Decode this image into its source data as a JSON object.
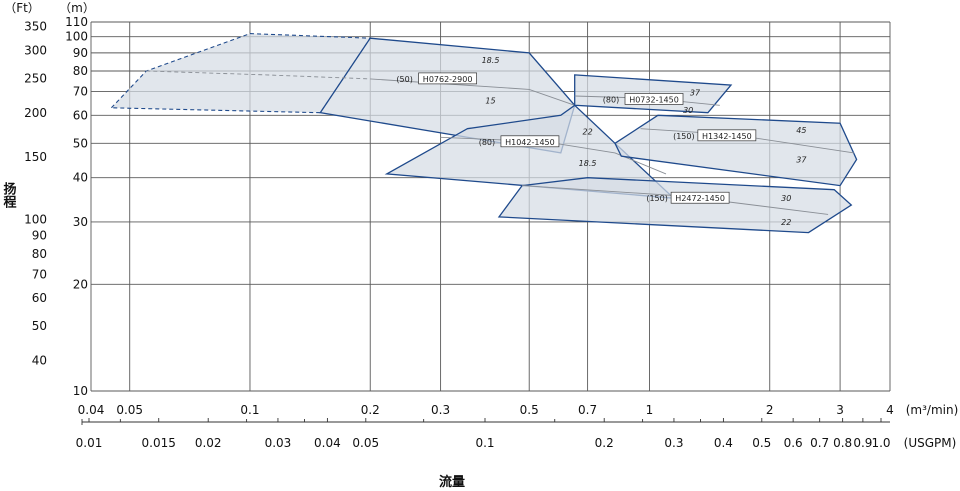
{
  "chart_data": {
    "type": "area",
    "x_axis_primary": {
      "unit_label": "(m³/min)",
      "scale": "log",
      "range": [
        0.04,
        4
      ],
      "ticks": [
        {
          "v": 0.04,
          "label": "0.04"
        },
        {
          "v": 0.05,
          "label": "0.05"
        },
        {
          "v": 0.1,
          "label": "0.1"
        },
        {
          "v": 0.2,
          "label": "0.2"
        },
        {
          "v": 0.3,
          "label": "0.3"
        },
        {
          "v": 0.5,
          "label": "0.5"
        },
        {
          "v": 0.7,
          "label": "0.7"
        },
        {
          "v": 1,
          "label": "1"
        },
        {
          "v": 2,
          "label": "2"
        },
        {
          "v": 3,
          "label": "3"
        },
        {
          "v": 4,
          "label": "4"
        }
      ]
    },
    "x_axis_secondary": {
      "unit_label": "(USGPM)",
      "scale": "log",
      "ticks": [
        {
          "v": 0.01,
          "label": "0.01"
        },
        {
          "v": 0.015,
          "label": "0.015"
        },
        {
          "v": 0.02,
          "label": "0.02"
        },
        {
          "v": 0.03,
          "label": "0.03"
        },
        {
          "v": 0.04,
          "label": "0.04"
        },
        {
          "v": 0.05,
          "label": "0.05"
        },
        {
          "v": 0.1,
          "label": "0.1"
        },
        {
          "v": 0.2,
          "label": "0.2"
        },
        {
          "v": 0.3,
          "label": "0.3"
        },
        {
          "v": 0.4,
          "label": "0.4"
        },
        {
          "v": 0.5,
          "label": "0.5"
        },
        {
          "v": 0.6,
          "label": "0.6"
        },
        {
          "v": 0.7,
          "label": "0.7"
        },
        {
          "v": 0.8,
          "label": "0.8"
        },
        {
          "v": 0.9,
          "label": "0.9"
        },
        {
          "v": 1.0,
          "label": "1.0"
        }
      ]
    },
    "y_axis_m": {
      "unit_label": "（m）",
      "scale": "log",
      "range": [
        10,
        110
      ],
      "ticks": [
        {
          "v": 10,
          "label": "10"
        },
        {
          "v": 20,
          "label": "20"
        },
        {
          "v": 30,
          "label": "30"
        },
        {
          "v": 40,
          "label": "40"
        },
        {
          "v": 50,
          "label": "50"
        },
        {
          "v": 60,
          "label": "60"
        },
        {
          "v": 70,
          "label": "70"
        },
        {
          "v": 80,
          "label": "80"
        },
        {
          "v": 90,
          "label": "90"
        },
        {
          "v": 100,
          "label": "100"
        },
        {
          "v": 110,
          "label": "110"
        }
      ]
    },
    "y_axis_ft": {
      "unit_label": "（Ft）",
      "scale": "log",
      "ticks": [
        {
          "v": 40,
          "label": "40"
        },
        {
          "v": 50,
          "label": "50"
        },
        {
          "v": 60,
          "label": "60"
        },
        {
          "v": 70,
          "label": "70"
        },
        {
          "v": 80,
          "label": "80"
        },
        {
          "v": 90,
          "label": "90"
        },
        {
          "v": 100,
          "label": "100"
        },
        {
          "v": 150,
          "label": "150"
        },
        {
          "v": 200,
          "label": "200"
        },
        {
          "v": 250,
          "label": "250"
        },
        {
          "v": 300,
          "label": "300"
        },
        {
          "v": 350,
          "label": "350"
        }
      ]
    },
    "ylabel": "扬程",
    "xlabel": "流量",
    "grid": true,
    "regions": [
      {
        "model": "H0762-2900",
        "size": "(50)",
        "dashed_polygon": [
          [
            0.045,
            63
          ],
          [
            0.055,
            80
          ],
          [
            0.1,
            102
          ],
          [
            0.2,
            99
          ],
          [
            0.15,
            61
          ]
        ],
        "solid_polygon": [
          [
            0.2,
            99
          ],
          [
            0.5,
            90
          ],
          [
            0.65,
            64
          ],
          [
            0.6,
            47
          ],
          [
            0.15,
            61
          ]
        ],
        "curve_dashed": [
          [
            0.055,
            80
          ],
          [
            0.11,
            78
          ],
          [
            0.2,
            76
          ]
        ],
        "curve_solid": [
          [
            0.2,
            76
          ],
          [
            0.5,
            71
          ],
          [
            0.65,
            64
          ]
        ],
        "label_at": [
          0.28,
          76
        ],
        "powers": [
          {
            "text": "18.5",
            "at": [
              0.4,
              86
            ]
          },
          {
            "text": "15",
            "at": [
              0.4,
              66
            ]
          }
        ]
      },
      {
        "model": "H0732-1450",
        "size": "(80)",
        "polygon": [
          [
            0.65,
            78
          ],
          [
            1.6,
            73
          ],
          [
            1.4,
            61
          ],
          [
            0.65,
            64
          ]
        ],
        "curve": [
          [
            0.65,
            68
          ],
          [
            1.0,
            67
          ],
          [
            1.5,
            64
          ]
        ],
        "label_at": [
          0.92,
          66.5
        ],
        "powers": [
          {
            "text": "37",
            "at": [
              1.3,
              69.5
            ]
          },
          {
            "text": "30",
            "at": [
              1.25,
              62
            ]
          }
        ]
      },
      {
        "model": "H1042-1450",
        "size": "(80)",
        "polygon": [
          [
            0.35,
            55
          ],
          [
            0.6,
            60
          ],
          [
            0.65,
            64
          ],
          [
            0.82,
            50
          ],
          [
            1.15,
            35
          ],
          [
            0.22,
            41
          ]
        ],
        "curve": [
          [
            0.3,
            52
          ],
          [
            0.55,
            50.5
          ],
          [
            0.82,
            47
          ],
          [
            1.1,
            41
          ]
        ],
        "label_at": [
          0.45,
          50.5
        ],
        "powers": [
          {
            "text": "22",
            "at": [
              0.7,
              54
            ]
          },
          {
            "text": "18.5",
            "at": [
              0.7,
              44
            ]
          }
        ]
      },
      {
        "model": "H1342-1450",
        "size": "(150)",
        "polygon": [
          [
            0.82,
            50
          ],
          [
            1.05,
            60
          ],
          [
            3.0,
            57
          ],
          [
            3.3,
            45
          ],
          [
            3.0,
            38
          ],
          [
            0.85,
            46
          ]
        ],
        "curve": [
          [
            0.95,
            55
          ],
          [
            1.6,
            53
          ],
          [
            3.25,
            47
          ]
        ],
        "label_at": [
          1.4,
          52.5
        ],
        "powers": [
          {
            "text": "45",
            "at": [
              2.4,
              54.5
            ]
          },
          {
            "text": "37",
            "at": [
              2.4,
              45
            ]
          }
        ]
      },
      {
        "model": "H2472-1450",
        "size": "(150)",
        "polygon": [
          [
            0.48,
            38
          ],
          [
            0.7,
            40
          ],
          [
            2.9,
            37
          ],
          [
            3.2,
            33.5
          ],
          [
            2.5,
            28
          ],
          [
            0.42,
            31
          ]
        ],
        "curve": [
          [
            0.48,
            38
          ],
          [
            1.2,
            35.5
          ],
          [
            2.8,
            31.5
          ]
        ],
        "label_at": [
          1.2,
          35
        ],
        "powers": [
          {
            "text": "30",
            "at": [
              2.2,
              35
            ]
          },
          {
            "text": "22",
            "at": [
              2.2,
              30
            ]
          }
        ]
      }
    ]
  }
}
